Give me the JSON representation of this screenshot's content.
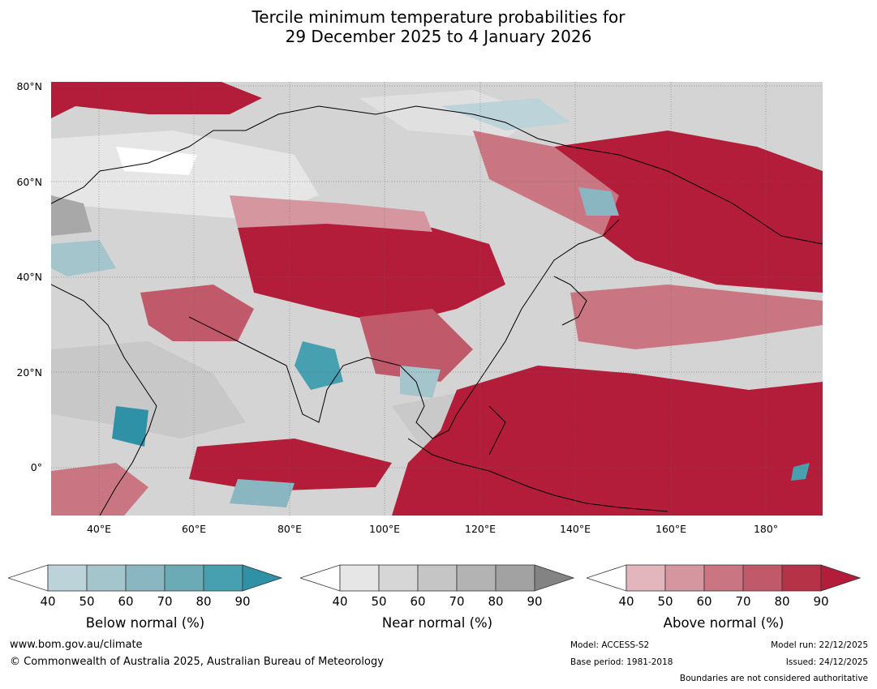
{
  "header": {
    "title_line1": "Tercile minimum temperature probabilities for",
    "title_line2": "29 December 2025 to 4 January 2026"
  },
  "map": {
    "lat_labels": [
      "80°N",
      "60°N",
      "40°N",
      "20°N",
      "0°"
    ],
    "lon_labels": [
      "40°E",
      "60°E",
      "80°E",
      "100°E",
      "120°E",
      "140°E",
      "160°E",
      "180°"
    ]
  },
  "legend": {
    "below": {
      "label": "Below normal (%)",
      "ticks": [
        "40",
        "50",
        "60",
        "70",
        "80",
        "90"
      ],
      "colors": [
        "#ffffff",
        "#bdd3da",
        "#a5c5cc",
        "#89b6c1",
        "#6aabb6",
        "#47a0b0",
        "#2f91a6"
      ]
    },
    "near": {
      "label": "Near normal (%)",
      "ticks": [
        "40",
        "50",
        "60",
        "70",
        "80",
        "90"
      ],
      "colors": [
        "#ffffff",
        "#e6e6e6",
        "#d6d6d6",
        "#c5c5c5",
        "#b3b3b3",
        "#a2a2a2",
        "#838383"
      ]
    },
    "above": {
      "label": "Above normal (%)",
      "ticks": [
        "40",
        "50",
        "60",
        "70",
        "80",
        "90"
      ],
      "colors": [
        "#ffffff",
        "#e3b6bd",
        "#d5969f",
        "#c97682",
        "#c05969",
        "#b63347",
        "#b41d39"
      ]
    }
  },
  "footer": {
    "website": "www.bom.gov.au/climate",
    "copyright": "© Commonwealth of Australia 2025, Australian Bureau of Meteorology",
    "model": "Model: ACCESS-S2",
    "base_period": "Base period: 1981-2018",
    "model_run": "Model run: 22/12/2025",
    "issued": "Issued: 24/12/2025",
    "disclaimer": "Boundaries are not considered authoritative"
  }
}
